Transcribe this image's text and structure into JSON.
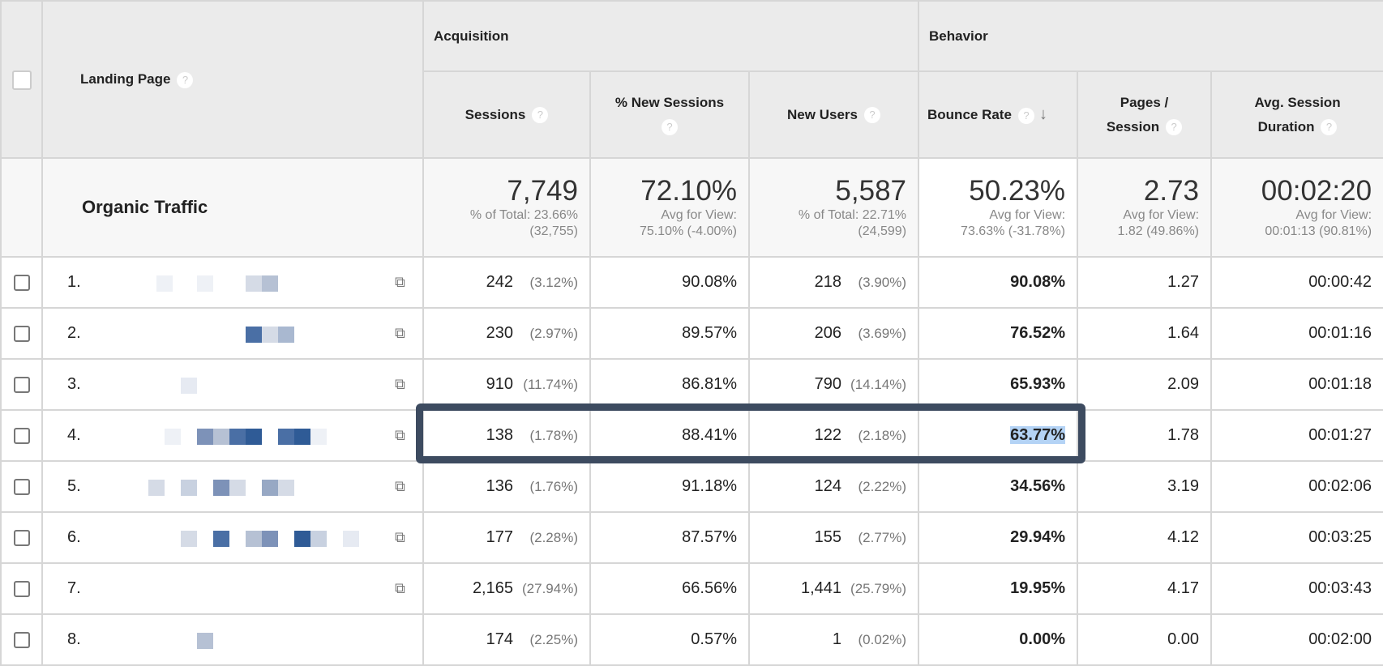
{
  "header": {
    "landing_page": "Landing Page",
    "groups": {
      "acquisition": "Acquisition",
      "behavior": "Behavior"
    },
    "columns": {
      "sessions": "Sessions",
      "new_sessions_pct": "% New Sessions",
      "new_users": "New Users",
      "bounce_rate": "Bounce Rate",
      "pages_session_1": "Pages /",
      "pages_session_2": "Session",
      "duration_1": "Avg. Session",
      "duration_2": "Duration"
    },
    "sort": {
      "column": "Bounce Rate",
      "direction": "descending",
      "icon": "arrow-down-icon"
    },
    "help_icon": "?"
  },
  "totals": {
    "label": "Organic Traffic",
    "sessions": {
      "value": "7,749",
      "sub1": "% of Total: 23.66%",
      "sub2": "(32,755)"
    },
    "new_sessions_pct": {
      "value": "72.10%",
      "sub1": "Avg for View:",
      "sub2": "75.10% (-4.00%)"
    },
    "new_users": {
      "value": "5,587",
      "sub1": "% of Total: 22.71%",
      "sub2": "(24,599)"
    },
    "bounce_rate": {
      "value": "50.23%",
      "sub1": "Avg for View:",
      "sub2": "73.63% (-31.78%)"
    },
    "pages_session": {
      "value": "2.73",
      "sub1": "Avg for View:",
      "sub2": "1.82 (49.86%)"
    },
    "duration": {
      "value": "00:02:20",
      "sub1": "Avg for View:",
      "sub2": "00:01:13 (90.81%)"
    }
  },
  "rows": [
    {
      "num": "1.",
      "sessions": "242",
      "sessions_pct": "(3.12%)",
      "new_sessions": "90.08%",
      "new_users": "218",
      "new_users_pct": "(3.90%)",
      "bounce": "90.08%",
      "pages": "1.27",
      "duration": "00:00:42"
    },
    {
      "num": "2.",
      "sessions": "230",
      "sessions_pct": "(2.97%)",
      "new_sessions": "89.57%",
      "new_users": "206",
      "new_users_pct": "(3.69%)",
      "bounce": "76.52%",
      "pages": "1.64",
      "duration": "00:01:16"
    },
    {
      "num": "3.",
      "sessions": "910",
      "sessions_pct": "(11.74%)",
      "new_sessions": "86.81%",
      "new_users": "790",
      "new_users_pct": "(14.14%)",
      "bounce": "65.93%",
      "pages": "2.09",
      "duration": "00:01:18"
    },
    {
      "num": "4.",
      "sessions": "138",
      "sessions_pct": "(1.78%)",
      "new_sessions": "88.41%",
      "new_users": "122",
      "new_users_pct": "(2.18%)",
      "bounce": "63.77%",
      "pages": "1.78",
      "duration": "00:01:27"
    },
    {
      "num": "5.",
      "sessions": "136",
      "sessions_pct": "(1.76%)",
      "new_sessions": "91.18%",
      "new_users": "124",
      "new_users_pct": "(2.22%)",
      "bounce": "34.56%",
      "pages": "3.19",
      "duration": "00:02:06"
    },
    {
      "num": "6.",
      "sessions": "177",
      "sessions_pct": "(2.28%)",
      "new_sessions": "87.57%",
      "new_users": "155",
      "new_users_pct": "(2.77%)",
      "bounce": "29.94%",
      "pages": "4.12",
      "duration": "00:03:25"
    },
    {
      "num": "7.",
      "sessions": "2,165",
      "sessions_pct": "(27.94%)",
      "new_sessions": "66.56%",
      "new_users": "1,441",
      "new_users_pct": "(25.79%)",
      "bounce": "19.95%",
      "pages": "4.17",
      "duration": "00:03:43"
    },
    {
      "num": "8.",
      "sessions": "174",
      "sessions_pct": "(2.25%)",
      "new_sessions": "0.57%",
      "new_users": "1",
      "new_users_pct": "(0.02%)",
      "bounce": "0.00%",
      "pages": "0.00",
      "duration": "00:02:00"
    }
  ],
  "highlight": {
    "row": "4.",
    "color": "#3d4b60"
  },
  "colors": {
    "header_bg": "#ebebeb",
    "totals_bg": "#f7f7f7",
    "border": "#d6d6d6",
    "selection": "#b4d3f5"
  }
}
